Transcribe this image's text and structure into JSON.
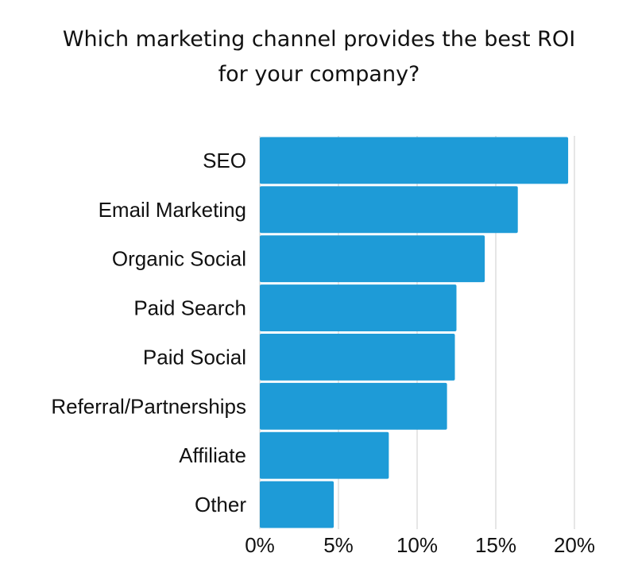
{
  "chart_data": {
    "type": "bar",
    "orientation": "horizontal",
    "title_lines": [
      "Which marketing channel provides the best ROI",
      "for your company?"
    ],
    "categories": [
      "SEO",
      "Email Marketing",
      "Organic Social",
      "Paid Search",
      "Paid Social",
      "Referral/Partnerships",
      "Affiliate",
      "Other"
    ],
    "values": [
      19.6,
      16.4,
      14.3,
      12.5,
      12.4,
      11.9,
      8.2,
      4.7
    ],
    "value_unit": "%",
    "x_ticks": [
      "0%",
      "5%",
      "10%",
      "15%",
      "20%"
    ],
    "xlim": [
      0,
      20
    ],
    "grid": "vertical",
    "bar_color": "#1e9bd7",
    "grid_color": "#cccccc"
  }
}
